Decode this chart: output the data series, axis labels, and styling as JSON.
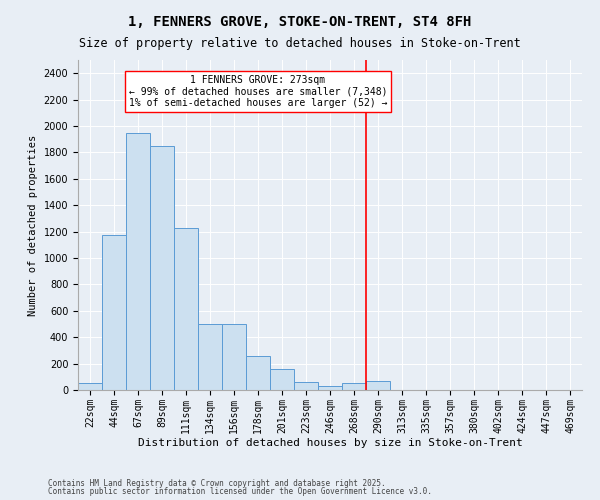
{
  "title": "1, FENNERS GROVE, STOKE-ON-TRENT, ST4 8FH",
  "subtitle": "Size of property relative to detached houses in Stoke-on-Trent",
  "xlabel": "Distribution of detached houses by size in Stoke-on-Trent",
  "ylabel": "Number of detached properties",
  "categories": [
    "22sqm",
    "44sqm",
    "67sqm",
    "89sqm",
    "111sqm",
    "134sqm",
    "156sqm",
    "178sqm",
    "201sqm",
    "223sqm",
    "246sqm",
    "268sqm",
    "290sqm",
    "313sqm",
    "335sqm",
    "357sqm",
    "380sqm",
    "402sqm",
    "424sqm",
    "447sqm",
    "469sqm"
  ],
  "values": [
    50,
    1175,
    1950,
    1850,
    1225,
    500,
    500,
    260,
    160,
    60,
    30,
    50,
    65,
    0,
    0,
    0,
    0,
    0,
    0,
    0,
    0
  ],
  "bar_color": "#cce0f0",
  "bar_edge_color": "#5b9bd5",
  "vline_x": 11.5,
  "vline_color": "red",
  "annotation_text": "1 FENNERS GROVE: 273sqm\n← 99% of detached houses are smaller (7,348)\n1% of semi-detached houses are larger (52) →",
  "annotation_box_color": "white",
  "annotation_box_edge": "red",
  "ylim": [
    0,
    2500
  ],
  "yticks": [
    0,
    200,
    400,
    600,
    800,
    1000,
    1200,
    1400,
    1600,
    1800,
    2000,
    2200,
    2400
  ],
  "bg_color": "#e8eef5",
  "footnote1": "Contains HM Land Registry data © Crown copyright and database right 2025.",
  "footnote2": "Contains public sector information licensed under the Open Government Licence v3.0.",
  "title_fontsize": 10,
  "subtitle_fontsize": 8.5,
  "xlabel_fontsize": 8,
  "ylabel_fontsize": 7.5,
  "tick_fontsize": 7,
  "annot_fontsize": 7,
  "footnote_fontsize": 5.5
}
